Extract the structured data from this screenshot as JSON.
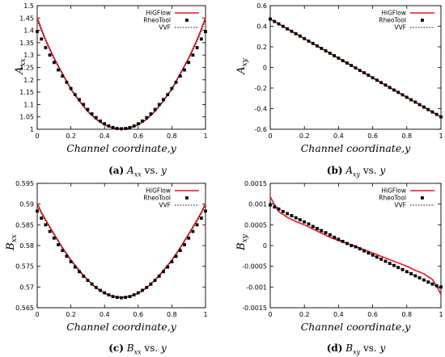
{
  "legend_labels": [
    "HiGFlow",
    "RheoTool",
    "VVF"
  ],
  "colors": {
    "higflow": "#e8171d",
    "rheotool": "#000000",
    "vvf": "#000000"
  },
  "chart_data": [
    {
      "type": "line",
      "panel_label": "(a)",
      "caption_math": "A",
      "caption_sub": "xx",
      "caption_text": " vs. ",
      "caption_var": "y",
      "ylabel_main": "A",
      "ylabel_sub": "xx",
      "xlabel": "Channel coordinate,y",
      "xlim": [
        0,
        1
      ],
      "ylim": [
        1,
        1.5
      ],
      "xticks": [
        0,
        0.2,
        0.4,
        0.6,
        0.8,
        1
      ],
      "xtick_labels": [
        "0",
        "0.2",
        "0.4",
        "0.6",
        "0.8",
        "1"
      ],
      "yticks": [
        1,
        1.05,
        1.1,
        1.15,
        1.2,
        1.25,
        1.3,
        1.35,
        1.4,
        1.45,
        1.5
      ],
      "ytick_labels": [
        "1",
        "1.05",
        "1.1",
        "1.15",
        "1.2",
        "1.25",
        "1.3",
        "1.35",
        "1.4",
        "1.45",
        "1.5"
      ],
      "legend_position": "top-right",
      "series": [
        {
          "name": "HiGFlow",
          "x": [
            0,
            0.025,
            0.05,
            0.1,
            0.15,
            0.2,
            0.25,
            0.3,
            0.35,
            0.4,
            0.45,
            0.5,
            0.55,
            0.6,
            0.65,
            0.7,
            0.75,
            0.8,
            0.85,
            0.9,
            0.95,
            0.975,
            1
          ],
          "y": [
            1.452,
            1.405,
            1.362,
            1.288,
            1.225,
            1.163,
            1.115,
            1.073,
            1.04,
            1.018,
            1.005,
            1.0,
            1.005,
            1.018,
            1.04,
            1.073,
            1.115,
            1.163,
            1.225,
            1.288,
            1.362,
            1.405,
            1.452
          ]
        },
        {
          "name": "RheoTool",
          "x": [
            0,
            0.025,
            0.05,
            0.075,
            0.1,
            0.125,
            0.15,
            0.175,
            0.2,
            0.225,
            0.25,
            0.275,
            0.3,
            0.325,
            0.35,
            0.375,
            0.4,
            0.425,
            0.45,
            0.475,
            0.5,
            0.525,
            0.55,
            0.575,
            0.6,
            0.625,
            0.65,
            0.675,
            0.7,
            0.725,
            0.75,
            0.775,
            0.8,
            0.825,
            0.85,
            0.875,
            0.9,
            0.925,
            0.95,
            0.975,
            1
          ],
          "y": [
            1.395,
            1.365,
            1.33,
            1.3,
            1.27,
            1.24,
            1.215,
            1.19,
            1.165,
            1.14,
            1.12,
            1.1,
            1.08,
            1.062,
            1.047,
            1.033,
            1.022,
            1.013,
            1.007,
            1.003,
            1.002,
            1.003,
            1.007,
            1.013,
            1.022,
            1.033,
            1.047,
            1.062,
            1.08,
            1.1,
            1.12,
            1.14,
            1.165,
            1.19,
            1.215,
            1.24,
            1.27,
            1.3,
            1.33,
            1.365,
            1.395
          ]
        },
        {
          "name": "VVF",
          "x": [
            0,
            0.05,
            0.1,
            0.15,
            0.2,
            0.25,
            0.3,
            0.35,
            0.4,
            0.45,
            0.5,
            0.55,
            0.6,
            0.65,
            0.7,
            0.75,
            0.8,
            0.85,
            0.9,
            0.95,
            1
          ],
          "y": [
            1.44,
            1.355,
            1.283,
            1.222,
            1.16,
            1.113,
            1.072,
            1.04,
            1.018,
            1.005,
            1.0,
            1.005,
            1.018,
            1.04,
            1.072,
            1.113,
            1.16,
            1.222,
            1.283,
            1.355,
            1.44
          ]
        }
      ]
    },
    {
      "type": "line",
      "panel_label": "(b)",
      "caption_math": "A",
      "caption_sub": "xy",
      "caption_text": " vs. ",
      "caption_var": "y",
      "ylabel_main": "A",
      "ylabel_sub": "xy",
      "xlabel": "Channel coordinate,y",
      "xlim": [
        0,
        1
      ],
      "ylim": [
        -0.6,
        0.6
      ],
      "xticks": [
        0,
        0.2,
        0.4,
        0.6,
        0.8,
        1
      ],
      "xtick_labels": [
        "0",
        "0.2",
        "0.4",
        "0.6",
        "0.8",
        "1"
      ],
      "yticks": [
        -0.6,
        -0.4,
        -0.2,
        0,
        0.2,
        0.4,
        0.6
      ],
      "ytick_labels": [
        "-0.6",
        "-0.4",
        "-0.2",
        "0",
        "0.2",
        "0.4",
        "0.6"
      ],
      "legend_position": "top-right",
      "series": [
        {
          "name": "HiGFlow",
          "x": [
            0,
            1
          ],
          "y": [
            0.47,
            -0.48
          ]
        },
        {
          "name": "RheoTool",
          "x": [
            0,
            0.025,
            0.05,
            0.075,
            0.1,
            0.125,
            0.15,
            0.175,
            0.2,
            0.225,
            0.25,
            0.275,
            0.3,
            0.325,
            0.35,
            0.375,
            0.4,
            0.425,
            0.45,
            0.475,
            0.5,
            0.525,
            0.55,
            0.575,
            0.6,
            0.625,
            0.65,
            0.675,
            0.7,
            0.725,
            0.75,
            0.775,
            0.8,
            0.825,
            0.85,
            0.875,
            0.9,
            0.925,
            0.95,
            0.975,
            1
          ],
          "y": [
            0.47,
            0.446,
            0.423,
            0.399,
            0.375,
            0.351,
            0.328,
            0.304,
            0.28,
            0.256,
            0.233,
            0.209,
            0.185,
            0.161,
            0.138,
            0.114,
            0.09,
            0.066,
            0.043,
            0.019,
            -0.005,
            -0.029,
            -0.052,
            -0.076,
            -0.1,
            -0.124,
            -0.147,
            -0.171,
            -0.195,
            -0.219,
            -0.242,
            -0.266,
            -0.29,
            -0.314,
            -0.337,
            -0.361,
            -0.385,
            -0.409,
            -0.432,
            -0.456,
            -0.48
          ]
        },
        {
          "name": "VVF",
          "x": [
            0,
            1
          ],
          "y": [
            0.47,
            -0.48
          ]
        }
      ]
    },
    {
      "type": "line",
      "panel_label": "(c)",
      "caption_math": "B",
      "caption_sub": "xx",
      "caption_text": " vs. ",
      "caption_var": "y",
      "ylabel_main": "B",
      "ylabel_sub": "xx",
      "xlabel": "Channel coordinate,y",
      "xlim": [
        0,
        1
      ],
      "ylim": [
        0.565,
        0.595
      ],
      "xticks": [
        0,
        0.2,
        0.4,
        0.6,
        0.8,
        1
      ],
      "xtick_labels": [
        "0",
        "0.2",
        "0.4",
        "0.6",
        "0.8",
        "1"
      ],
      "yticks": [
        0.565,
        0.57,
        0.575,
        0.58,
        0.585,
        0.59,
        0.595
      ],
      "ytick_labels": [
        "0.565",
        "0.57",
        "0.575",
        "0.58",
        "0.585",
        "0.59",
        "0.595"
      ],
      "legend_position": "top-right",
      "series": [
        {
          "name": "HiGFlow",
          "x": [
            0,
            0.025,
            0.05,
            0.1,
            0.15,
            0.2,
            0.25,
            0.3,
            0.35,
            0.4,
            0.45,
            0.5,
            0.55,
            0.6,
            0.65,
            0.7,
            0.75,
            0.8,
            0.85,
            0.9,
            0.95,
            0.975,
            1
          ],
          "y": [
            0.5902,
            0.588,
            0.5862,
            0.5828,
            0.5795,
            0.5765,
            0.574,
            0.5717,
            0.5698,
            0.5685,
            0.5677,
            0.5675,
            0.5677,
            0.5685,
            0.5698,
            0.5717,
            0.574,
            0.5765,
            0.5795,
            0.5828,
            0.5862,
            0.588,
            0.5902
          ]
        },
        {
          "name": "RheoTool",
          "x": [
            0,
            0.025,
            0.05,
            0.075,
            0.1,
            0.125,
            0.15,
            0.175,
            0.2,
            0.225,
            0.25,
            0.275,
            0.3,
            0.325,
            0.35,
            0.375,
            0.4,
            0.425,
            0.45,
            0.475,
            0.5,
            0.525,
            0.55,
            0.575,
            0.6,
            0.625,
            0.65,
            0.675,
            0.7,
            0.725,
            0.75,
            0.775,
            0.8,
            0.825,
            0.85,
            0.875,
            0.9,
            0.925,
            0.95,
            0.975,
            1
          ],
          "y": [
            0.5883,
            0.5866,
            0.585,
            0.5834,
            0.5818,
            0.5802,
            0.5788,
            0.5774,
            0.5761,
            0.5748,
            0.5737,
            0.5726,
            0.5716,
            0.5707,
            0.5699,
            0.5692,
            0.5686,
            0.5681,
            0.5677,
            0.5675,
            0.5674,
            0.5675,
            0.5677,
            0.5681,
            0.5686,
            0.5692,
            0.5699,
            0.5707,
            0.5716,
            0.5726,
            0.5737,
            0.5748,
            0.5761,
            0.5774,
            0.5788,
            0.5802,
            0.5818,
            0.5834,
            0.585,
            0.5866,
            0.5883
          ]
        },
        {
          "name": "VVF",
          "x": [
            0,
            0.05,
            0.1,
            0.15,
            0.2,
            0.25,
            0.3,
            0.35,
            0.4,
            0.45,
            0.5,
            0.55,
            0.6,
            0.65,
            0.7,
            0.75,
            0.8,
            0.85,
            0.9,
            0.95,
            1
          ],
          "y": [
            0.5895,
            0.5858,
            0.5825,
            0.5793,
            0.5763,
            0.5738,
            0.5716,
            0.5697,
            0.5684,
            0.5677,
            0.5674,
            0.5677,
            0.5684,
            0.5697,
            0.5716,
            0.5738,
            0.5763,
            0.5793,
            0.5825,
            0.5858,
            0.5895
          ]
        }
      ]
    },
    {
      "type": "line",
      "panel_label": "(d)",
      "caption_math": "B",
      "caption_sub": "xy",
      "caption_text": " vs. ",
      "caption_var": "y",
      "ylabel_main": "B",
      "ylabel_sub": "xy",
      "xlabel": "Channel coordinate,y",
      "xlim": [
        0,
        1
      ],
      "ylim": [
        -0.0015,
        0.0015
      ],
      "xticks": [
        0,
        0.2,
        0.4,
        0.6,
        0.8,
        1
      ],
      "xtick_labels": [
        "0",
        "0.2",
        "0.4",
        "0.6",
        "0.8",
        "1"
      ],
      "yticks": [
        -0.0015,
        -0.001,
        -0.0005,
        0,
        0.0005,
        0.001,
        0.0015
      ],
      "ytick_labels": [
        "-0.0015",
        "-0.001",
        "-0.0005",
        "0",
        "0.0005",
        "0.001",
        "0.0015"
      ],
      "legend_position": "top-right",
      "series": [
        {
          "name": "HiGFlow",
          "x": [
            0,
            0.025,
            0.05,
            0.1,
            0.15,
            0.2,
            0.25,
            0.3,
            0.35,
            0.4,
            0.45,
            0.5,
            0.55,
            0.6,
            0.65,
            0.7,
            0.75,
            0.8,
            0.85,
            0.9,
            0.95,
            0.975,
            1
          ],
          "y": [
            0.00118,
            0.00098,
            0.00082,
            0.00068,
            0.00058,
            0.0005,
            0.0004,
            0.0003,
            0.0002,
            0.00012,
            5e-05,
            -2e-05,
            -0.0001,
            -0.00018,
            -0.00026,
            -0.00034,
            -0.00042,
            -0.0005,
            -0.0006,
            -0.00068,
            -0.00082,
            -0.00098,
            -0.00118
          ]
        },
        {
          "name": "RheoTool",
          "x": [
            0,
            0.025,
            0.05,
            0.075,
            0.1,
            0.125,
            0.15,
            0.175,
            0.2,
            0.225,
            0.25,
            0.275,
            0.3,
            0.325,
            0.35,
            0.375,
            0.4,
            0.425,
            0.45,
            0.475,
            0.5,
            0.525,
            0.55,
            0.575,
            0.6,
            0.625,
            0.65,
            0.675,
            0.7,
            0.725,
            0.75,
            0.775,
            0.8,
            0.825,
            0.85,
            0.875,
            0.9,
            0.925,
            0.95,
            0.975,
            1
          ],
          "y": [
            0.00098,
            0.00093,
            0.00088,
            0.00082,
            0.00077,
            0.00072,
            0.00067,
            0.00062,
            0.00057,
            0.00052,
            0.00046,
            0.00041,
            0.00036,
            0.00031,
            0.00026,
            0.0002,
            0.00015,
            0.0001,
            5e-05,
            0.0,
            -3e-05,
            -8e-05,
            -0.00013,
            -0.00018,
            -0.00023,
            -0.00028,
            -0.00033,
            -0.00038,
            -0.00043,
            -0.00048,
            -0.00053,
            -0.00058,
            -0.00063,
            -0.00068,
            -0.00073,
            -0.00078,
            -0.00083,
            -0.00088,
            -0.00093,
            -0.00097,
            -0.001
          ]
        },
        {
          "name": "VVF",
          "x": [
            0,
            0.05,
            0.1,
            0.15,
            0.2,
            0.25,
            0.3,
            0.35,
            0.4,
            0.45,
            0.5,
            0.55,
            0.6,
            0.65,
            0.7,
            0.75,
            0.8,
            0.85,
            0.9,
            0.95,
            1
          ],
          "y": [
            0.00105,
            0.0009,
            0.00077,
            0.00067,
            0.00057,
            0.00046,
            0.00036,
            0.00026,
            0.00015,
            5e-05,
            -3e-05,
            -0.00013,
            -0.00023,
            -0.00033,
            -0.00043,
            -0.00053,
            -0.00063,
            -0.00073,
            -0.00083,
            -0.00093,
            -0.00105
          ]
        }
      ]
    }
  ]
}
